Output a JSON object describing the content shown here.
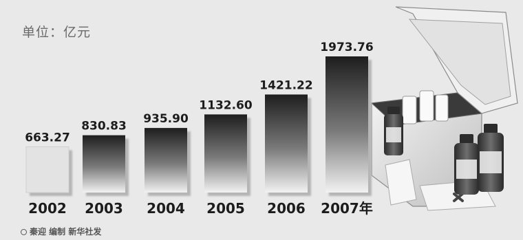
{
  "unit_label": "单位：亿元",
  "credit": "秦迎 编制 新华社发",
  "colors": {
    "background": "#e9e9e9",
    "bar_dark": "#1e1e1e",
    "bar_light": "#f2f2f2",
    "first_bar": "#e3e3e3",
    "text": "#1c1c1c"
  },
  "illustration": [
    "medical-kit-box-icon",
    "medicine-bottle-icon"
  ],
  "chart_data": {
    "type": "bar",
    "title": "",
    "xlabel": "",
    "ylabel": "",
    "categories": [
      "2002",
      "2003",
      "2004",
      "2005",
      "2006",
      "2007年"
    ],
    "values": [
      663.27,
      830.83,
      935.9,
      1132.6,
      1421.22,
      1973.76
    ],
    "value_labels": [
      "663.27",
      "830.83",
      "935.90",
      "1132.60",
      "1421.22",
      "1973.76"
    ],
    "ylim": [
      0,
      1973.76
    ],
    "grid": false,
    "legend": "none"
  }
}
